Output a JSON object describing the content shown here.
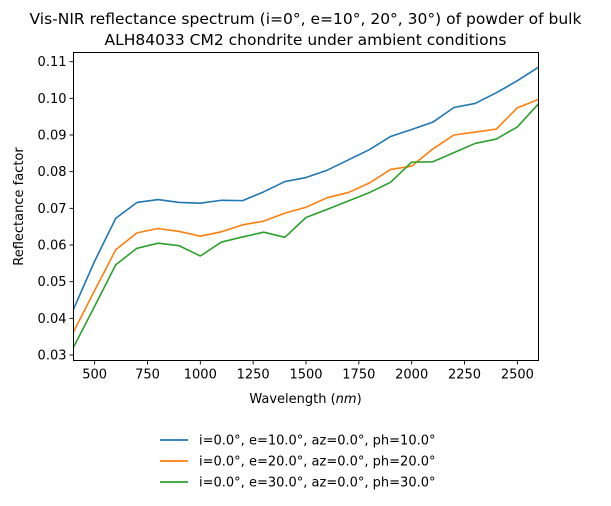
{
  "chart_data": {
    "type": "line",
    "title_lines": [
      "Vis-NIR reflectance spectrum (i=0°, e=10°, 20°, 30°) of powder of bulk",
      "ALH84033 CM2 chondrite under ambient conditions"
    ],
    "xlabel": "Wavelength (nm)",
    "xlabel_prefix": "Wavelength (",
    "xlabel_unit": "nm",
    "xlabel_suffix": ")",
    "ylabel": "Reflectance factor",
    "xlim": [
      400,
      2600
    ],
    "ylim": [
      0.0285,
      0.1125
    ],
    "x_ticks": [
      500,
      750,
      1000,
      1250,
      1500,
      1750,
      2000,
      2250,
      2500
    ],
    "y_ticks": [
      0.03,
      0.04,
      0.05,
      0.06,
      0.07,
      0.08,
      0.09,
      0.1,
      0.11
    ],
    "x_tick_labels": [
      "500",
      "750",
      "1000",
      "1250",
      "1500",
      "1750",
      "2000",
      "2250",
      "2500"
    ],
    "y_tick_labels": [
      "0.03",
      "0.04",
      "0.05",
      "0.06",
      "0.07",
      "0.08",
      "0.09",
      "0.10",
      "0.11"
    ],
    "grid": false,
    "legend_position": "below plot, centered",
    "x": [
      400,
      500,
      600,
      700,
      800,
      900,
      1000,
      1100,
      1200,
      1300,
      1400,
      1500,
      1600,
      1700,
      1800,
      1900,
      2000,
      2100,
      2200,
      2300,
      2400,
      2500,
      2600
    ],
    "series": [
      {
        "name": "i=0.0°, e=10.0°, az=0.0°, ph=10.0°",
        "color": "#1f77b4",
        "values": [
          0.0425,
          0.0556,
          0.0673,
          0.0716,
          0.0724,
          0.0716,
          0.0714,
          0.0722,
          0.0721,
          0.0745,
          0.0773,
          0.0784,
          0.0804,
          0.0832,
          0.086,
          0.0896,
          0.0915,
          0.0935,
          0.0975,
          0.0986,
          0.1015,
          0.1048,
          0.1085
        ]
      },
      {
        "name": "i=0.0°, e=20.0°, az=0.0°, ph=20.0°",
        "color": "#ff7f0e",
        "values": [
          0.0363,
          0.0476,
          0.0587,
          0.0633,
          0.0645,
          0.0637,
          0.0624,
          0.0636,
          0.0655,
          0.0665,
          0.0687,
          0.0703,
          0.0729,
          0.0743,
          0.0769,
          0.0806,
          0.0815,
          0.0862,
          0.09,
          0.0908,
          0.0916,
          0.0974,
          0.0997
        ]
      },
      {
        "name": "i=0.0°, e=30.0°, az=0.0°, ph=30.0°",
        "color": "#2ca02c",
        "values": [
          0.0321,
          0.0433,
          0.0546,
          0.0591,
          0.0605,
          0.0598,
          0.057,
          0.0608,
          0.0622,
          0.0635,
          0.0621,
          0.0675,
          0.0697,
          0.072,
          0.0743,
          0.0771,
          0.0826,
          0.0827,
          0.0852,
          0.0877,
          0.0889,
          0.0922,
          0.0985
        ]
      }
    ]
  }
}
